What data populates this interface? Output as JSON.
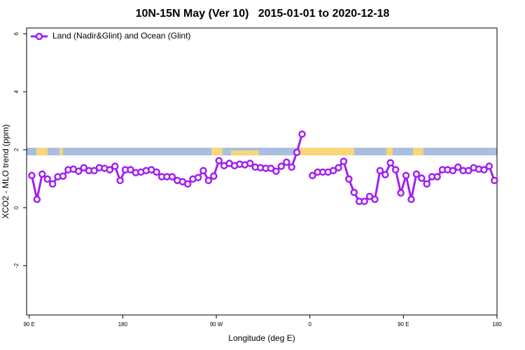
{
  "chart_data": {
    "type": "line",
    "title": "10N-15N May (Ver 10)   2015-01-01 to 2020-12-18",
    "xlabel": "Longitude (deg E)",
    "ylabel": "XCO2 - MLO trend (ppm)",
    "xlim": [
      87.5,
      540
    ],
    "ylim": [
      -3.7,
      6.2
    ],
    "xticks": [
      {
        "value": 90,
        "label": "90 E"
      },
      180,
      {
        "value": 270,
        "label": "90 W"
      },
      {
        "value": 360,
        "label": "0"
      },
      {
        "value": 450,
        "label": "90 E"
      },
      {
        "value": 540,
        "label": "180"
      }
    ],
    "yticks": [
      -2,
      0,
      2,
      4,
      6
    ],
    "legend": "top-left",
    "x": [
      92.5,
      97.5,
      102.5,
      107.5,
      112.5,
      117.5,
      122.5,
      127.5,
      132.5,
      137.5,
      142.5,
      147.5,
      152.5,
      157.5,
      162.5,
      167.5,
      172.5,
      177.5,
      182.5,
      187.5,
      192.5,
      197.5,
      202.5,
      207.5,
      212.5,
      217.5,
      222.5,
      227.5,
      232.5,
      237.5,
      242.5,
      247.5,
      252.5,
      257.5,
      262.5,
      267.5,
      272.5,
      277.5,
      282.5,
      287.5,
      292.5,
      297.5,
      302.5,
      307.5,
      312.5,
      317.5,
      322.5,
      327.5,
      332.5,
      337.5,
      342.5,
      347.5,
      352.5,
      357.5,
      362.5,
      367.5,
      372.5,
      377.5,
      382.5,
      387.5,
      392.5,
      397.5,
      402.5,
      407.5,
      412.5,
      417.5,
      422.5,
      427.5,
      432.5,
      437.5,
      442.5,
      447.5,
      452.5,
      457.5,
      462.5,
      467.5,
      472.5,
      477.5,
      482.5,
      487.5,
      492.5,
      497.5,
      502.5,
      507.5,
      512.5,
      517.5,
      522.5,
      527.5,
      532.5,
      537.5
    ],
    "series": [
      {
        "name": "Land (Nadir&Glint) and Ocean (Glint)",
        "color": "#a020f0",
        "values": [
          1.11,
          0.29,
          1.16,
          0.99,
          0.82,
          1.07,
          1.09,
          1.31,
          1.33,
          1.26,
          1.38,
          1.28,
          1.28,
          1.38,
          1.36,
          1.31,
          1.43,
          0.94,
          1.31,
          1.31,
          1.21,
          1.23,
          1.28,
          1.31,
          1.23,
          1.07,
          1.07,
          1.07,
          0.94,
          0.9,
          0.82,
          0.99,
          1.04,
          1.28,
          0.94,
          1.09,
          1.62,
          1.45,
          1.53,
          1.45,
          1.5,
          1.48,
          1.53,
          1.4,
          1.38,
          1.36,
          1.36,
          1.26,
          1.43,
          1.57,
          1.4,
          1.91,
          2.54,
          null,
          1.11,
          1.23,
          1.23,
          1.23,
          1.28,
          1.38,
          1.6,
          0.99,
          0.53,
          0.22,
          0.22,
          0.39,
          0.29,
          1.28,
          1.14,
          1.55,
          1.31,
          0.51,
          1.11,
          0.29,
          1.16,
          1.02,
          0.82,
          1.07,
          1.07,
          1.31,
          1.31,
          1.28,
          1.4,
          1.28,
          1.28,
          1.38,
          1.33,
          1.31,
          1.43,
          0.94
        ]
      }
    ]
  }
}
